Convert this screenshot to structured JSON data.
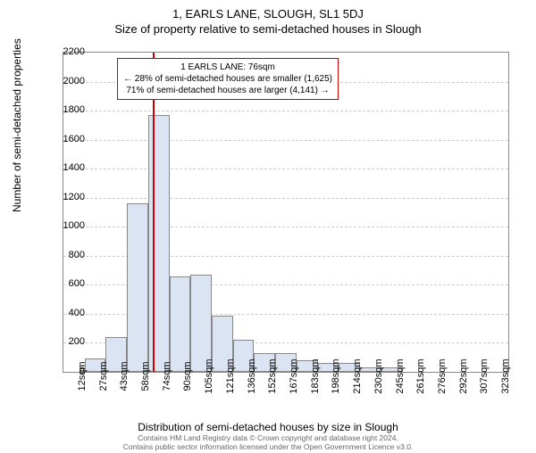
{
  "title_main": "1, EARLS LANE, SLOUGH, SL1 5DJ",
  "title_sub": "Size of property relative to semi-detached houses in Slough",
  "ylabel": "Number of semi-detached properties",
  "xlabel": "Distribution of semi-detached houses by size in Slough",
  "footnote_line1": "Contains HM Land Registry data © Crown copyright and database right 2024.",
  "footnote_line2": "Contains public sector information licensed under the Open Government Licence v3.0.",
  "chart": {
    "type": "histogram",
    "ylim": [
      0,
      2200
    ],
    "ytick_step": 200,
    "xticks": [
      "12sqm",
      "27sqm",
      "43sqm",
      "58sqm",
      "74sqm",
      "90sqm",
      "105sqm",
      "121sqm",
      "136sqm",
      "152sqm",
      "167sqm",
      "183sqm",
      "198sqm",
      "214sqm",
      "230sqm",
      "245sqm",
      "261sqm",
      "276sqm",
      "292sqm",
      "307sqm",
      "323sqm"
    ],
    "bar_values": [
      0,
      90,
      240,
      1160,
      1770,
      660,
      670,
      390,
      220,
      130,
      130,
      80,
      60,
      60,
      30,
      30,
      0,
      0,
      0,
      0,
      0
    ],
    "bar_fill": "#dbe4f3",
    "bar_border": "#888888",
    "grid_color": "#cccccc",
    "background": "#ffffff",
    "marker_x_index": 4.2,
    "marker_color": "#cc0000",
    "info_box": {
      "line1": "1 EARLS LANE: 76sqm",
      "line2": "← 28% of semi-detached houses are smaller (1,625)",
      "line3": "71% of semi-detached houses are larger (4,141) →",
      "border_color": "#cc0000"
    }
  }
}
